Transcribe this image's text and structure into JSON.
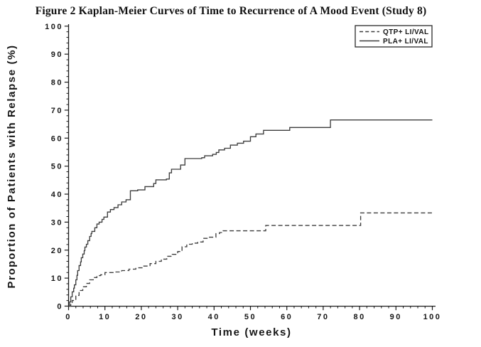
{
  "page": {
    "title": "Figure 2 Kaplan-Meier Curves of Time to Recurrence of A Mood Event (Study 8)"
  },
  "chart_data": {
    "type": "line",
    "subtype": "kaplan_meier_step",
    "title": "Figure 2 Kaplan-Meier Curves of Time to Recurrence of A Mood Event (Study 8)",
    "xlabel": "Time (weeks)",
    "ylabel": "Proportion of Patients with Relapse (%)",
    "xlim": [
      0,
      100
    ],
    "ylim": [
      0,
      100
    ],
    "x_tick_values": [
      0,
      10,
      20,
      30,
      40,
      50,
      60,
      70,
      80,
      90,
      100
    ],
    "x_tick_labels": [
      "0",
      "10",
      "20",
      "30",
      "40",
      "50",
      "60",
      "70",
      "80",
      "90",
      "100"
    ],
    "y_tick_values": [
      0,
      10,
      20,
      30,
      40,
      50,
      60,
      70,
      80,
      90,
      100
    ],
    "y_tick_labels": [
      "0",
      "10",
      "20",
      "30",
      "40",
      "50",
      "60",
      "70",
      "80",
      "90",
      "100"
    ],
    "minor_tick_step": 2,
    "grid": false,
    "legend_position": "top-right",
    "axis_color": "#1a1a1a",
    "curve_color": "#3d3d3d",
    "series": [
      {
        "name": "QTP+ LI/VAL",
        "line_style": "dashed",
        "color": "#3d3d3d",
        "points": [
          [
            0,
            0
          ],
          [
            0.6,
            0.8
          ],
          [
            1,
            2
          ],
          [
            2,
            3.8
          ],
          [
            2.9,
            5.6
          ],
          [
            3.9,
            6.9
          ],
          [
            4.9,
            8.1
          ],
          [
            5.8,
            9.4
          ],
          [
            6.8,
            10.2
          ],
          [
            7.8,
            10.9
          ],
          [
            8.8,
            11.2
          ],
          [
            10,
            12
          ],
          [
            12.7,
            12.2
          ],
          [
            14.6,
            12.7
          ],
          [
            16.6,
            13.2
          ],
          [
            18.5,
            13.7
          ],
          [
            20.5,
            14.3
          ],
          [
            22.4,
            15.2
          ],
          [
            24,
            16
          ],
          [
            25.5,
            16.8
          ],
          [
            27,
            17.8
          ],
          [
            28.5,
            18.5
          ],
          [
            30,
            19.5
          ],
          [
            31.2,
            21.2
          ],
          [
            32.5,
            22.1
          ],
          [
            34,
            22.5
          ],
          [
            35.5,
            22.9
          ],
          [
            37,
            24.2
          ],
          [
            38.5,
            24.6
          ],
          [
            40.5,
            25.9
          ],
          [
            41.5,
            26.3
          ],
          [
            42.5,
            26.9
          ],
          [
            54.2,
            28.8
          ],
          [
            80.3,
            33.3
          ],
          [
            100,
            33.3
          ]
        ]
      },
      {
        "name": "PLA+ LI/VAL",
        "line_style": "solid",
        "color": "#3d3d3d",
        "points": [
          [
            0,
            0
          ],
          [
            0.3,
            1.5
          ],
          [
            0.6,
            3.3
          ],
          [
            1,
            5.1
          ],
          [
            1.4,
            6.4
          ],
          [
            1.6,
            7.6
          ],
          [
            2,
            9.4
          ],
          [
            2.3,
            11
          ],
          [
            2.5,
            12.7
          ],
          [
            2.9,
            14.5
          ],
          [
            3.3,
            15.8
          ],
          [
            3.5,
            17.3
          ],
          [
            3.9,
            18.6
          ],
          [
            4.3,
            19.8
          ],
          [
            4.5,
            21.1
          ],
          [
            4.9,
            22.1
          ],
          [
            5.3,
            23.4
          ],
          [
            5.8,
            24.9
          ],
          [
            6.2,
            25.9
          ],
          [
            6.4,
            26.7
          ],
          [
            7.2,
            28
          ],
          [
            7.8,
            29.3
          ],
          [
            8.4,
            30
          ],
          [
            9.2,
            31
          ],
          [
            9.7,
            31.8
          ],
          [
            10.7,
            33.6
          ],
          [
            11.5,
            34.5
          ],
          [
            12.5,
            35.2
          ],
          [
            13.6,
            36.2
          ],
          [
            14.6,
            37.2
          ],
          [
            15.8,
            38
          ],
          [
            17,
            41.2
          ],
          [
            19,
            41.5
          ],
          [
            21,
            42.7
          ],
          [
            23.4,
            43.8
          ],
          [
            24,
            45.1
          ],
          [
            26.9,
            45.4
          ],
          [
            27.7,
            47.6
          ],
          [
            28.3,
            48.9
          ],
          [
            30.8,
            50.4
          ],
          [
            32,
            52.7
          ],
          [
            36.6,
            53
          ],
          [
            37.4,
            53.7
          ],
          [
            39.6,
            54.2
          ],
          [
            40.6,
            54.9
          ],
          [
            41.3,
            55.8
          ],
          [
            42.9,
            56.4
          ],
          [
            44.5,
            57.5
          ],
          [
            46.4,
            58.2
          ],
          [
            48.1,
            58.9
          ],
          [
            50,
            60.5
          ],
          [
            51.5,
            61.5
          ],
          [
            53.6,
            62.8
          ],
          [
            60.8,
            63.8
          ],
          [
            72,
            66.5
          ],
          [
            100,
            66.5
          ]
        ]
      }
    ]
  }
}
